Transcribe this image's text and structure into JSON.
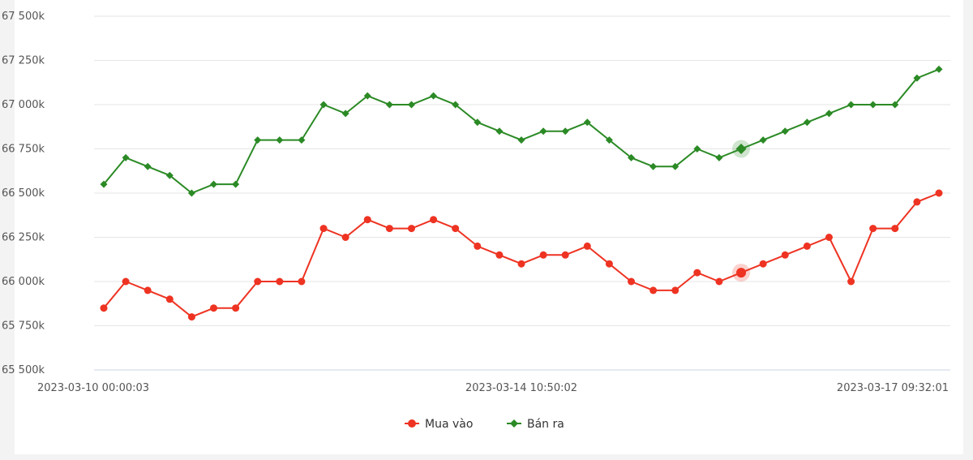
{
  "chart_data": {
    "type": "line",
    "title": "",
    "xlabel": "",
    "ylabel": "",
    "ylim": [
      65500,
      67500
    ],
    "yticks": [
      65500,
      65750,
      66000,
      66250,
      66500,
      66750,
      67000,
      67250,
      67500
    ],
    "ytick_labels": [
      "65 500k",
      "65 750k",
      "66 000k",
      "66 250k",
      "66 500k",
      "66 750k",
      "67 000k",
      "67 250k",
      "67 500k"
    ],
    "xtick_labels": [
      {
        "index": 0,
        "label": "2023-03-10 00:00:03"
      },
      {
        "index": 19,
        "label": "2023-03-14 10:50:02"
      },
      {
        "index": 38,
        "label": "2023-03-17 09:32:01"
      }
    ],
    "grid": true,
    "legend_position": "bottom-center",
    "highlight_index": 29,
    "series": [
      {
        "name": "Mua vào",
        "color": "#ee3322",
        "marker": "circle",
        "values": [
          65850,
          66000,
          65950,
          65900,
          65800,
          65850,
          65850,
          66000,
          66000,
          66000,
          66300,
          66250,
          66350,
          66300,
          66300,
          66350,
          66300,
          66200,
          66150,
          66100,
          66150,
          66150,
          66200,
          66100,
          66000,
          65950,
          65950,
          66050,
          66000,
          66050,
          66100,
          66150,
          66200,
          66250,
          66000,
          66300,
          66300,
          66450,
          66500
        ]
      },
      {
        "name": "Bán ra",
        "color": "#2b8a25",
        "marker": "diamond",
        "values": [
          66550,
          66700,
          66650,
          66600,
          66500,
          66550,
          66550,
          66800,
          66800,
          66800,
          67000,
          66950,
          67050,
          67000,
          67000,
          67050,
          67000,
          66900,
          66850,
          66800,
          66850,
          66850,
          66900,
          66800,
          66700,
          66650,
          66650,
          66750,
          66700,
          66750,
          66800,
          66850,
          66900,
          66950,
          67000,
          67000,
          67000,
          67150,
          67200
        ]
      }
    ]
  }
}
